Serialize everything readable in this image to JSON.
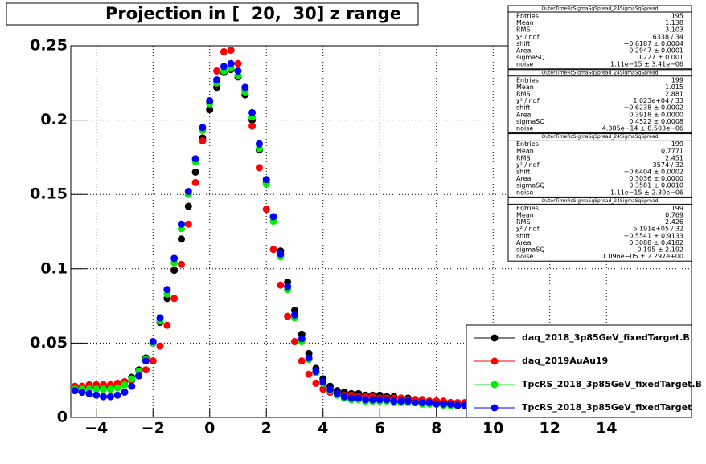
{
  "chart_data": {
    "type": "scatter",
    "title": "Projection in [  20,  30] z range",
    "x": [
      -4.75,
      -4.5,
      -4.25,
      -4,
      -3.75,
      -3.5,
      -3.25,
      -3,
      -2.75,
      -2.5,
      -2.25,
      -2,
      -1.75,
      -1.5,
      -1.25,
      -1,
      -0.75,
      -0.5,
      -0.25,
      0,
      0.25,
      0.5,
      0.75,
      1,
      1.25,
      1.5,
      1.75,
      2,
      2.25,
      2.5,
      2.75,
      3,
      3.25,
      3.5,
      3.75,
      4,
      4.25,
      4.5,
      4.75,
      5,
      5.25,
      5.5,
      5.75,
      6,
      6.25,
      6.5,
      6.75,
      7,
      7.25,
      7.5,
      7.75,
      8,
      8.25,
      8.5,
      8.75,
      9
    ],
    "series": [
      {
        "name": "daq_2018_3p85GeV_fixedTarget.B",
        "color": "#000000",
        "values": [
          0.02,
          0.02,
          0.02,
          0.02,
          0.02,
          0.021,
          0.022,
          0.024,
          0.027,
          0.032,
          0.04,
          0.05,
          0.064,
          0.08,
          0.099,
          0.12,
          0.142,
          0.165,
          0.188,
          0.207,
          0.222,
          0.232,
          0.234,
          0.229,
          0.217,
          0.2,
          0.18,
          0.158,
          0.135,
          0.112,
          0.091,
          0.072,
          0.056,
          0.043,
          0.033,
          0.026,
          0.021,
          0.018,
          0.017,
          0.016,
          0.016,
          0.015,
          0.015,
          0.015,
          0.014,
          0.014,
          0.013,
          0.013,
          0.012,
          0.012,
          0.011,
          0.011,
          0.01,
          0.01,
          0.009,
          0.009
        ]
      },
      {
        "name": "daq_2019AuAu19",
        "color": "#ff0000",
        "values": [
          0.021,
          0.021,
          0.022,
          0.022,
          0.022,
          0.022,
          0.023,
          0.024,
          0.025,
          0.028,
          0.032,
          0.038,
          0.048,
          0.062,
          0.08,
          0.103,
          0.13,
          0.158,
          0.186,
          0.212,
          0.233,
          0.246,
          0.247,
          0.238,
          0.22,
          0.196,
          0.168,
          0.14,
          0.113,
          0.089,
          0.068,
          0.051,
          0.038,
          0.029,
          0.023,
          0.019,
          0.017,
          0.016,
          0.015,
          0.015,
          0.014,
          0.014,
          0.014,
          0.013,
          0.013,
          0.013,
          0.013,
          0.012,
          0.012,
          0.012,
          0.011,
          0.011,
          0.011,
          0.01,
          0.01,
          0.01
        ]
      },
      {
        "name": "TpcRS_2018_3p85GeV_fixedTarget.B",
        "color": "#00ee00",
        "values": [
          0.019,
          0.019,
          0.019,
          0.019,
          0.019,
          0.019,
          0.02,
          0.022,
          0.026,
          0.031,
          0.039,
          0.05,
          0.065,
          0.083,
          0.104,
          0.127,
          0.15,
          0.172,
          0.193,
          0.211,
          0.225,
          0.233,
          0.235,
          0.23,
          0.219,
          0.202,
          0.181,
          0.157,
          0.132,
          0.108,
          0.086,
          0.067,
          0.051,
          0.039,
          0.03,
          0.023,
          0.018,
          0.015,
          0.013,
          0.012,
          0.012,
          0.011,
          0.011,
          0.011,
          0.011,
          0.01,
          0.01,
          0.01,
          0.01,
          0.009,
          0.009,
          0.009,
          0.008,
          0.008,
          0.008,
          0.008
        ]
      },
      {
        "name": "TpcRS_2018_3p85GeV_fixedTarget",
        "color": "#0000ff",
        "values": [
          0.018,
          0.017,
          0.016,
          0.015,
          0.014,
          0.014,
          0.015,
          0.017,
          0.021,
          0.028,
          0.038,
          0.051,
          0.067,
          0.086,
          0.107,
          0.13,
          0.152,
          0.174,
          0.195,
          0.213,
          0.227,
          0.236,
          0.238,
          0.233,
          0.222,
          0.205,
          0.184,
          0.16,
          0.135,
          0.11,
          0.088,
          0.069,
          0.053,
          0.04,
          0.031,
          0.024,
          0.019,
          0.016,
          0.014,
          0.013,
          0.013,
          0.012,
          0.012,
          0.012,
          0.012,
          0.011,
          0.011,
          0.011,
          0.01,
          0.01,
          0.01,
          0.009,
          0.009,
          0.009,
          0.008,
          0.008
        ]
      }
    ],
    "xlim": [
      -4.9,
      17.0
    ],
    "ylim": [
      0,
      0.25
    ],
    "xticks": [
      {
        "value": -4,
        "label": "−4"
      },
      {
        "value": -2,
        "label": "−2"
      },
      0,
      2,
      4,
      6,
      8,
      10,
      12,
      14
    ],
    "yticks": [
      0,
      0.05,
      0.1,
      0.15,
      0.2,
      0.25
    ],
    "grid": true,
    "stats_boxes": [
      {
        "title": "OuterTimeRcSigmaSqSpread_24SigmaSqSpread",
        "rows": [
          [
            "Entries",
            "195"
          ],
          [
            "Mean",
            "1.138"
          ],
          [
            "RMS",
            "3.103"
          ],
          [
            "χ² / ndf",
            "6338 / 34"
          ],
          [
            "shift",
            "−0.6187 ± 0.0004"
          ],
          [
            "Area",
            "0.2947 ± 0.0001"
          ],
          [
            "sigmaSQ",
            "0.227 ± 0.001"
          ],
          [
            "noise",
            "1.11e−15 ± 3.41e−06"
          ]
        ]
      },
      {
        "title": "OuterTimeRcSigmaSqSpread_24SigmaSqSpread",
        "rows": [
          [
            "Entries",
            "199"
          ],
          [
            "Mean",
            "1.015"
          ],
          [
            "RMS",
            "2.881"
          ],
          [
            "χ² / ndf",
            "1.023e+04 / 33"
          ],
          [
            "shift",
            "−0.6238 ± 0.0002"
          ],
          [
            "Area",
            "0.3918 ± 0.0000"
          ],
          [
            "sigmaSQ",
            "0.4522 ± 0.0008"
          ],
          [
            "noise",
            "4.385e−14 ± 8.503e−06"
          ]
        ]
      },
      {
        "title": "OuterTimeRcSigmaSqSpread_24SigmaSqSpread",
        "rows": [
          [
            "Entries",
            "199"
          ],
          [
            "Mean",
            "0.7771"
          ],
          [
            "RMS",
            "2.451"
          ],
          [
            "χ² / ndf",
            "3574 / 32"
          ],
          [
            "shift",
            "−0.6404 ± 0.0002"
          ],
          [
            "Area",
            "0.3036 ± 0.0000"
          ],
          [
            "sigmaSQ",
            "0.3581 ± 0.0010"
          ],
          [
            "noise",
            "1.11e−15 ± 2.30e−06"
          ]
        ]
      },
      {
        "title": "OuterTimeRcSigmaSqSpread_24SigmaSqSpread",
        "rows": [
          [
            "Entries",
            "199"
          ],
          [
            "Mean",
            "0.769"
          ],
          [
            "RMS",
            "2.426"
          ],
          [
            "χ² / ndf",
            "5.191e+05 / 32"
          ],
          [
            "shift",
            "−0.5541 ± 0.9133"
          ],
          [
            "Area",
            "0.3088 ± 0.4182"
          ],
          [
            "sigmaSQ",
            "0.195 ± 2.192"
          ],
          [
            "noise",
            "1.096e−05 ± 2.297e+00"
          ]
        ]
      }
    ]
  }
}
